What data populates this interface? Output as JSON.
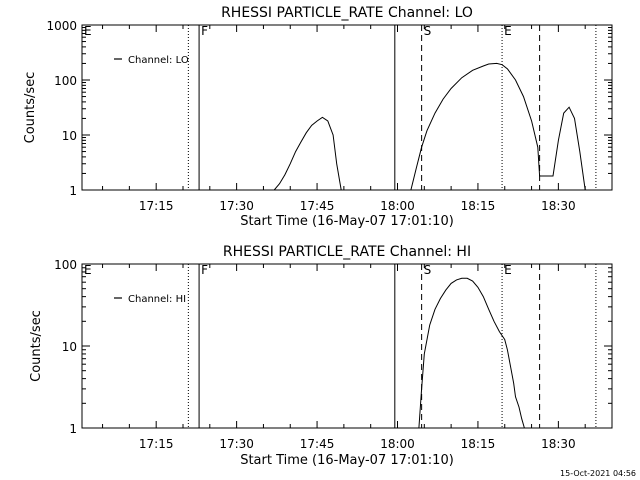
{
  "footer": {
    "timestamp": "15-Oct-2021 04:56"
  },
  "chart_data": [
    {
      "type": "line",
      "title": "RHESSI PARTICLE_RATE Channel: LO",
      "xlabel": "Start Time (16-May-07 17:01:10)",
      "ylabel": "Counts/sec",
      "yscale": "log",
      "xlim": [
        "17:01:10",
        "18:40:00"
      ],
      "ylim": [
        1,
        1000
      ],
      "x_ticks": [
        "17:15",
        "17:30",
        "17:45",
        "18:00",
        "18:15",
        "18:30"
      ],
      "y_ticks": [
        {
          "value": 1,
          "label": "1"
        },
        {
          "value": 10,
          "label": "10"
        },
        {
          "value": 100,
          "label": "100"
        },
        {
          "value": 1000,
          "label": "1000"
        }
      ],
      "legend": {
        "position": "top-left",
        "entries": [
          "Channel: LO"
        ]
      },
      "markers": [
        {
          "label": "E",
          "time": "17:01:10",
          "style": "dotted"
        },
        {
          "label": "",
          "time": "17:21:00",
          "style": "dotted"
        },
        {
          "label": "F",
          "time": "17:23:00",
          "style": "solid"
        },
        {
          "label": "",
          "time": "17:59:30",
          "style": "solid"
        },
        {
          "label": "S",
          "time": "18:04:30",
          "style": "dashed"
        },
        {
          "label": "E",
          "time": "18:19:30",
          "style": "dotted"
        },
        {
          "label": "",
          "time": "18:26:30",
          "style": "dashed"
        },
        {
          "label": "",
          "time": "18:37:00",
          "style": "dotted"
        }
      ],
      "series": [
        {
          "segments": [
            {
              "x": [
                "17:37:00",
                "17:38:00",
                "17:39:00",
                "17:40:00",
                "17:41:00",
                "17:42:00",
                "17:43:00",
                "17:44:00",
                "17:45:00",
                "17:46:00",
                "17:47:00",
                "17:48:00",
                "17:48:40",
                "17:49:30"
              ],
              "y": [
                1.0,
                1.3,
                1.9,
                3.0,
                5.0,
                7.5,
                11,
                15,
                18,
                21,
                18,
                10,
                3,
                1.0
              ]
            },
            {
              "x": [
                "18:02:30",
                "18:03:30",
                "18:04:30",
                "18:05:30",
                "18:07:00",
                "18:08:30",
                "18:10:00",
                "18:12:00",
                "18:14:00",
                "18:16:00",
                "18:17:00",
                "18:18:30",
                "18:19:30",
                "18:20:30",
                "18:22:00",
                "18:23:30",
                "18:25:00",
                "18:26:10",
                "18:26:30",
                "18:28:00",
                "18:29:00",
                "18:30:00",
                "18:31:00",
                "18:32:00",
                "18:33:00",
                "18:34:00",
                "18:35:00"
              ],
              "y": [
                1.0,
                2.5,
                6,
                12,
                25,
                45,
                70,
                110,
                150,
                180,
                195,
                200,
                190,
                160,
                100,
                50,
                18,
                6,
                1.8,
                1.8,
                1.8,
                8,
                25,
                32,
                20,
                5,
                1.0
              ]
            }
          ]
        }
      ]
    },
    {
      "type": "line",
      "title": "RHESSI PARTICLE_RATE Channel: HI",
      "xlabel": "Start Time (16-May-07 17:01:10)",
      "ylabel": "Counts/sec",
      "yscale": "log",
      "xlim": [
        "17:01:10",
        "18:40:00"
      ],
      "ylim": [
        1,
        100
      ],
      "x_ticks": [
        "17:15",
        "17:30",
        "17:45",
        "18:00",
        "18:15",
        "18:30"
      ],
      "y_ticks": [
        {
          "value": 1,
          "label": "1"
        },
        {
          "value": 10,
          "label": "10"
        },
        {
          "value": 100,
          "label": "100"
        }
      ],
      "legend": {
        "position": "top-left",
        "entries": [
          "Channel: HI"
        ]
      },
      "markers": [
        {
          "label": "E",
          "time": "17:01:10",
          "style": "dotted"
        },
        {
          "label": "",
          "time": "17:21:00",
          "style": "dotted"
        },
        {
          "label": "F",
          "time": "17:23:00",
          "style": "solid"
        },
        {
          "label": "",
          "time": "17:59:30",
          "style": "solid"
        },
        {
          "label": "S",
          "time": "18:04:30",
          "style": "dashed"
        },
        {
          "label": "E",
          "time": "18:19:30",
          "style": "dotted"
        },
        {
          "label": "",
          "time": "18:26:30",
          "style": "dashed"
        },
        {
          "label": "",
          "time": "18:37:00",
          "style": "dotted"
        }
      ],
      "series": [
        {
          "segments": [
            {
              "x": [
                "18:04:00",
                "18:04:30",
                "18:05:00",
                "18:06:00",
                "18:07:00",
                "18:08:00",
                "18:09:00",
                "18:10:00",
                "18:11:00",
                "18:12:00",
                "18:13:00",
                "18:14:00",
                "18:15:00",
                "18:16:00",
                "18:17:00",
                "18:18:00",
                "18:19:00",
                "18:20:00",
                "18:20:30",
                "18:21:00",
                "18:21:40",
                "18:22:00",
                "18:22:40",
                "18:23:10",
                "18:23:40"
              ],
              "y": [
                1.0,
                3,
                8,
                18,
                28,
                38,
                48,
                58,
                64,
                67,
                67,
                62,
                52,
                40,
                28,
                20,
                15,
                12,
                9,
                6,
                3.5,
                2.4,
                1.8,
                1.3,
                1.0
              ]
            }
          ]
        }
      ]
    }
  ]
}
